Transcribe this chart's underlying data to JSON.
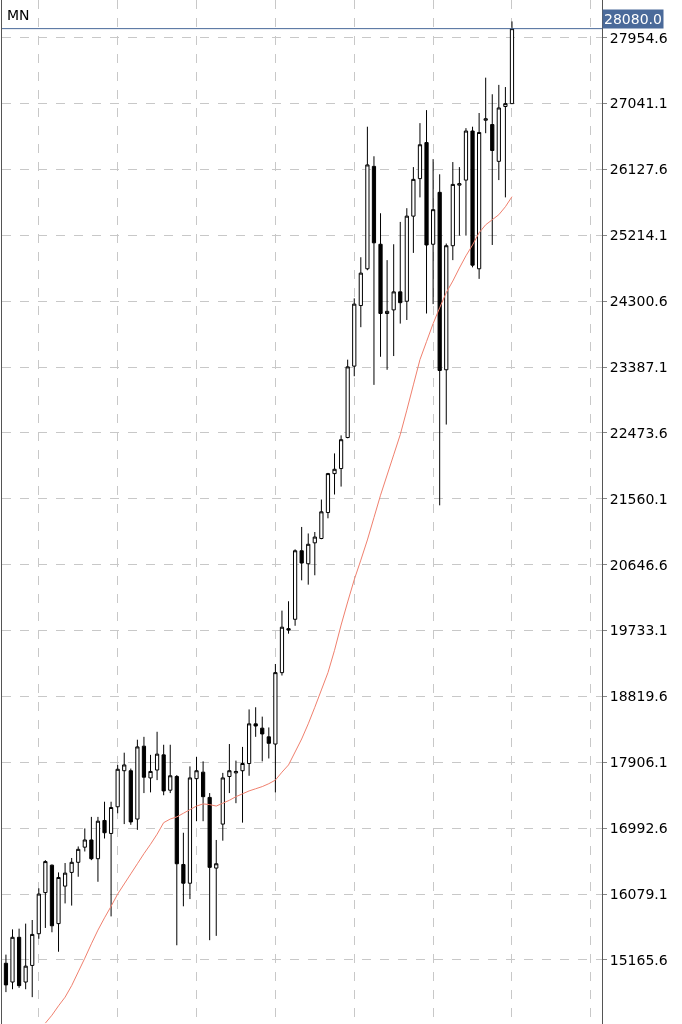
{
  "chart_data": {
    "type": "candlestick",
    "title": "MN",
    "categories": [
      null,
      null,
      null,
      null,
      null,
      null,
      null,
      null,
      null,
      null,
      null,
      null,
      null,
      null,
      null,
      null,
      null,
      null,
      null,
      null,
      null,
      null,
      null,
      null,
      null,
      null,
      null,
      null,
      null,
      null,
      null,
      null,
      null,
      null,
      null,
      null,
      null,
      null,
      null,
      null,
      null,
      null,
      null,
      null,
      null,
      null,
      null,
      null,
      null,
      null,
      null,
      null,
      null,
      null,
      null,
      null,
      null,
      null,
      null,
      null,
      null,
      null,
      null,
      null,
      null,
      null,
      null,
      null,
      null,
      null,
      null,
      null,
      null,
      null,
      null,
      null,
      null,
      null
    ],
    "ohlc": [
      [
        15120,
        15240,
        14720,
        14820
      ],
      [
        14860,
        15590,
        14760,
        15480
      ],
      [
        15480,
        15600,
        14780,
        14810
      ],
      [
        14860,
        15670,
        14760,
        15080
      ],
      [
        15090,
        15720,
        14650,
        15520
      ],
      [
        15530,
        16160,
        15460,
        16080
      ],
      [
        16100,
        16550,
        15610,
        16530
      ],
      [
        16480,
        16490,
        15550,
        15640
      ],
      [
        15670,
        16380,
        15280,
        16310
      ],
      [
        16190,
        16510,
        15950,
        16370
      ],
      [
        16380,
        16580,
        15920,
        16520
      ],
      [
        16520,
        16740,
        16320,
        16700
      ],
      [
        16730,
        16990,
        16670,
        16830
      ],
      [
        16830,
        17150,
        16550,
        16570
      ],
      [
        16570,
        17150,
        16250,
        17090
      ],
      [
        17100,
        17360,
        16850,
        16930
      ],
      [
        16920,
        17360,
        15770,
        17280
      ],
      [
        17290,
        17870,
        17200,
        17810
      ],
      [
        17790,
        18040,
        17050,
        17870
      ],
      [
        17790,
        17820,
        17040,
        17080
      ],
      [
        17120,
        18220,
        16970,
        18120
      ],
      [
        18130,
        18260,
        17480,
        17700
      ],
      [
        17690,
        18010,
        17490,
        17780
      ],
      [
        17800,
        18330,
        17660,
        18020
      ],
      [
        18010,
        18150,
        17450,
        17510
      ],
      [
        17520,
        18150,
        17480,
        17720
      ],
      [
        17710,
        17730,
        15370,
        16500
      ],
      [
        16490,
        16930,
        15910,
        16230
      ],
      [
        16230,
        17850,
        16010,
        17690
      ],
      [
        17680,
        17980,
        17090,
        17790
      ],
      [
        17770,
        17920,
        17090,
        17430
      ],
      [
        17420,
        17480,
        15440,
        16450
      ],
      [
        16440,
        16830,
        15500,
        16500
      ],
      [
        17050,
        17760,
        16820,
        17690
      ],
      [
        17710,
        18160,
        17480,
        17790
      ],
      [
        17760,
        17930,
        17340,
        17780
      ],
      [
        17790,
        18120,
        17070,
        17890
      ],
      [
        17890,
        18640,
        17720,
        18440
      ],
      [
        18440,
        18670,
        18260,
        18410
      ],
      [
        18380,
        18540,
        17920,
        18300
      ],
      [
        18260,
        18390,
        17960,
        18170
      ],
      [
        18160,
        19270,
        17490,
        19150
      ],
      [
        19150,
        20010,
        19110,
        19780
      ],
      [
        19760,
        20140,
        19690,
        19740
      ],
      [
        19890,
        20860,
        19800,
        20840
      ],
      [
        20840,
        21170,
        20430,
        20670
      ],
      [
        20660,
        21080,
        20370,
        20930
      ],
      [
        20950,
        21100,
        20500,
        21030
      ],
      [
        21010,
        21550,
        21000,
        21380
      ],
      [
        21370,
        21920,
        21290,
        21910
      ],
      [
        21910,
        22190,
        21620,
        21970
      ],
      [
        21980,
        22440,
        21730,
        22380
      ],
      [
        22410,
        23490,
        22400,
        23390
      ],
      [
        23400,
        24340,
        23260,
        24260
      ],
      [
        24240,
        24910,
        23940,
        24690
      ],
      [
        24750,
        26720,
        24730,
        26190
      ],
      [
        26170,
        26310,
        23140,
        25110
      ],
      [
        25090,
        25520,
        23530,
        24130
      ],
      [
        24130,
        24870,
        23350,
        24160
      ],
      [
        24180,
        25090,
        23540,
        24430
      ],
      [
        24430,
        25400,
        23990,
        24280
      ],
      [
        24300,
        25590,
        24040,
        25480
      ],
      [
        25480,
        26160,
        24970,
        25990
      ],
      [
        26000,
        26770,
        25740,
        26470
      ],
      [
        26500,
        26950,
        24130,
        25080
      ],
      [
        25090,
        26270,
        24260,
        25570
      ],
      [
        25810,
        26060,
        21470,
        23340
      ],
      [
        23350,
        25100,
        22590,
        25070
      ],
      [
        25070,
        26230,
        24870,
        25920
      ],
      [
        25910,
        26160,
        25210,
        25930
      ],
      [
        25980,
        26700,
        25210,
        26660
      ],
      [
        26660,
        26720,
        24770,
        24800
      ],
      [
        24750,
        26910,
        24610,
        26640
      ],
      [
        26810,
        27400,
        26630,
        26830
      ],
      [
        26750,
        27170,
        25080,
        26390
      ],
      [
        26240,
        27300,
        25980,
        26980
      ],
      [
        27000,
        27270,
        25740,
        27040
      ],
      [
        27040,
        28180,
        27040,
        28080
      ]
    ],
    "series": [
      {
        "type": "line",
        "color": "#f0806e",
        "values": [
          null,
          null,
          null,
          null,
          null,
          null,
          14290,
          14400,
          14530,
          14650,
          14810,
          15000,
          15190,
          15390,
          15580,
          15750,
          15910,
          16080,
          16220,
          16360,
          16500,
          16640,
          16770,
          16910,
          17070,
          17120,
          17150,
          17200,
          17250,
          17300,
          17330,
          17320,
          17300,
          17340,
          17380,
          17430,
          17470,
          17510,
          17540,
          17570,
          17610,
          17660,
          17770,
          17870,
          18050,
          18230,
          18440,
          18670,
          18910,
          19150,
          19460,
          19810,
          20130,
          20440,
          20710,
          20990,
          21300,
          21610,
          21890,
          22170,
          22450,
          22790,
          23140,
          23490,
          23740,
          23990,
          24210,
          24420,
          24580,
          24760,
          24930,
          25080,
          25250,
          25360,
          25430,
          25500,
          25610,
          25750
        ]
      }
    ],
    "ylim": [
      14278,
      28477
    ],
    "yticks": [
      15165.6,
      16079.1,
      16992.6,
      17906.1,
      18819.6,
      19733.1,
      20646.6,
      21560.1,
      22473.6,
      23387.1,
      24300.6,
      25214.1,
      26127.6,
      27041.1,
      27954.6
    ],
    "ref_lines": [
      {
        "axis": "y",
        "value": 28080,
        "label": "28080.0",
        "color": "#4a6a9a"
      }
    ],
    "grid": true,
    "tick_labels": "y"
  }
}
